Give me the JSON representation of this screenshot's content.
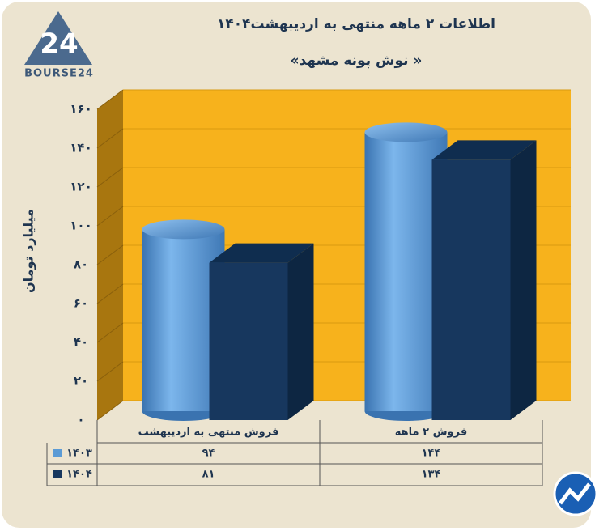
{
  "logo": {
    "mark": "24",
    "name": "BOURSE24"
  },
  "chart_data": {
    "type": "bar3d",
    "title": "اطلاعات ۲ ماهه منتهی به اردیبهشت۱۴۰۴",
    "subtitle": "«نوش پونه مشهد »",
    "y_label": "میلیارد تومان",
    "categories": [
      "فروش منتهی به  اردیبهشت",
      "فروش ۲  ماهه"
    ],
    "series": [
      {
        "name": "۱۴۰۳",
        "color": "#5b9bd5",
        "values": [
          94,
          144
        ],
        "value_labels": [
          "۹۴",
          "۱۴۴"
        ]
      },
      {
        "name": "۱۴۰۴",
        "color": "#17375e",
        "values": [
          81,
          134
        ],
        "value_labels": [
          "۸۱",
          "۱۳۴"
        ]
      }
    ],
    "ylim": [
      0,
      160
    ],
    "yticks": [
      {
        "value": 0,
        "label": "۰"
      },
      {
        "value": 20,
        "label": "۲۰"
      },
      {
        "value": 40,
        "label": "۴۰"
      },
      {
        "value": 60,
        "label": "۶۰"
      },
      {
        "value": 80,
        "label": "۸۰"
      },
      {
        "value": 100,
        "label": "۱۰۰"
      },
      {
        "value": 120,
        "label": "۱۲۰"
      },
      {
        "value": 140,
        "label": "۱۴۰"
      },
      {
        "value": 160,
        "label": "۱۶۰"
      }
    ],
    "grid": true,
    "wall_color": "#f7b21c"
  }
}
